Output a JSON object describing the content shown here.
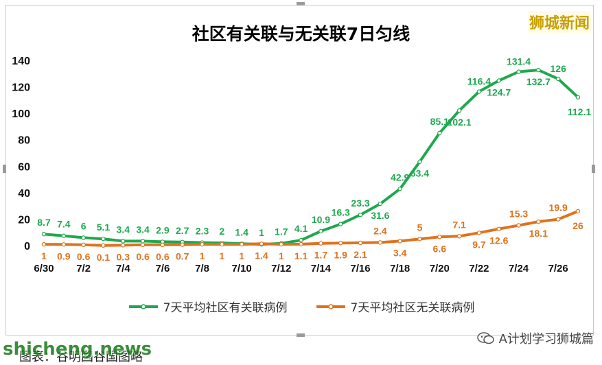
{
  "title": "社区有关联与无关联7日匀线",
  "brand": "狮城新闻",
  "footer": {
    "watermark": "shicheng.news",
    "caption": "图表：谷明国谷国图略",
    "account": "A计划学习狮城篇"
  },
  "colors": {
    "linked": "#1fa84f",
    "unlinked": "#e0721c",
    "brand": "#c8a000"
  },
  "chart_data": {
    "type": "line",
    "x": [
      "6/30",
      "7/1",
      "7/2",
      "7/3",
      "7/4",
      "7/5",
      "7/6",
      "7/7",
      "7/8",
      "7/9",
      "7/10",
      "7/11",
      "7/12",
      "7/13",
      "7/14",
      "7/15",
      "7/16",
      "7/17",
      "7/18",
      "7/19",
      "7/20",
      "7/21",
      "7/22",
      "7/23",
      "7/24",
      "7/25",
      "7/26",
      "7/27"
    ],
    "x_tick_labels": [
      "6/30",
      "7/2",
      "7/4",
      "7/6",
      "7/8",
      "7/10",
      "7/12",
      "7/14",
      "7/16",
      "7/18",
      "7/20",
      "7/22",
      "7/24",
      "7/26"
    ],
    "ylim": [
      0,
      140
    ],
    "y_ticks": [
      0,
      20,
      40,
      60,
      80,
      100,
      120,
      140
    ],
    "grid": false,
    "legend": "bottom",
    "series": [
      {
        "name": "7天平均社区有关联病例",
        "values": [
          8.7,
          7.4,
          6,
          5.1,
          3.4,
          3.4,
          2.9,
          2.7,
          2.3,
          2,
          1.4,
          1,
          1.7,
          4.1,
          10.9,
          16.3,
          23.3,
          31.6,
          42.9,
          63.4,
          85.1,
          102.1,
          116.4,
          124.7,
          131.4,
          132.7,
          126,
          112.1
        ]
      },
      {
        "name": "7天平均社区无关联病例",
        "values": [
          1,
          0.9,
          0.6,
          0.1,
          0.3,
          0.6,
          0.6,
          0.7,
          1,
          1,
          1,
          1.4,
          1,
          1.1,
          1.7,
          1.9,
          2.1,
          2.4,
          3.4,
          5,
          6.6,
          7.1,
          9.7,
          12.6,
          15.3,
          18.1,
          19.9,
          26
        ]
      }
    ]
  }
}
